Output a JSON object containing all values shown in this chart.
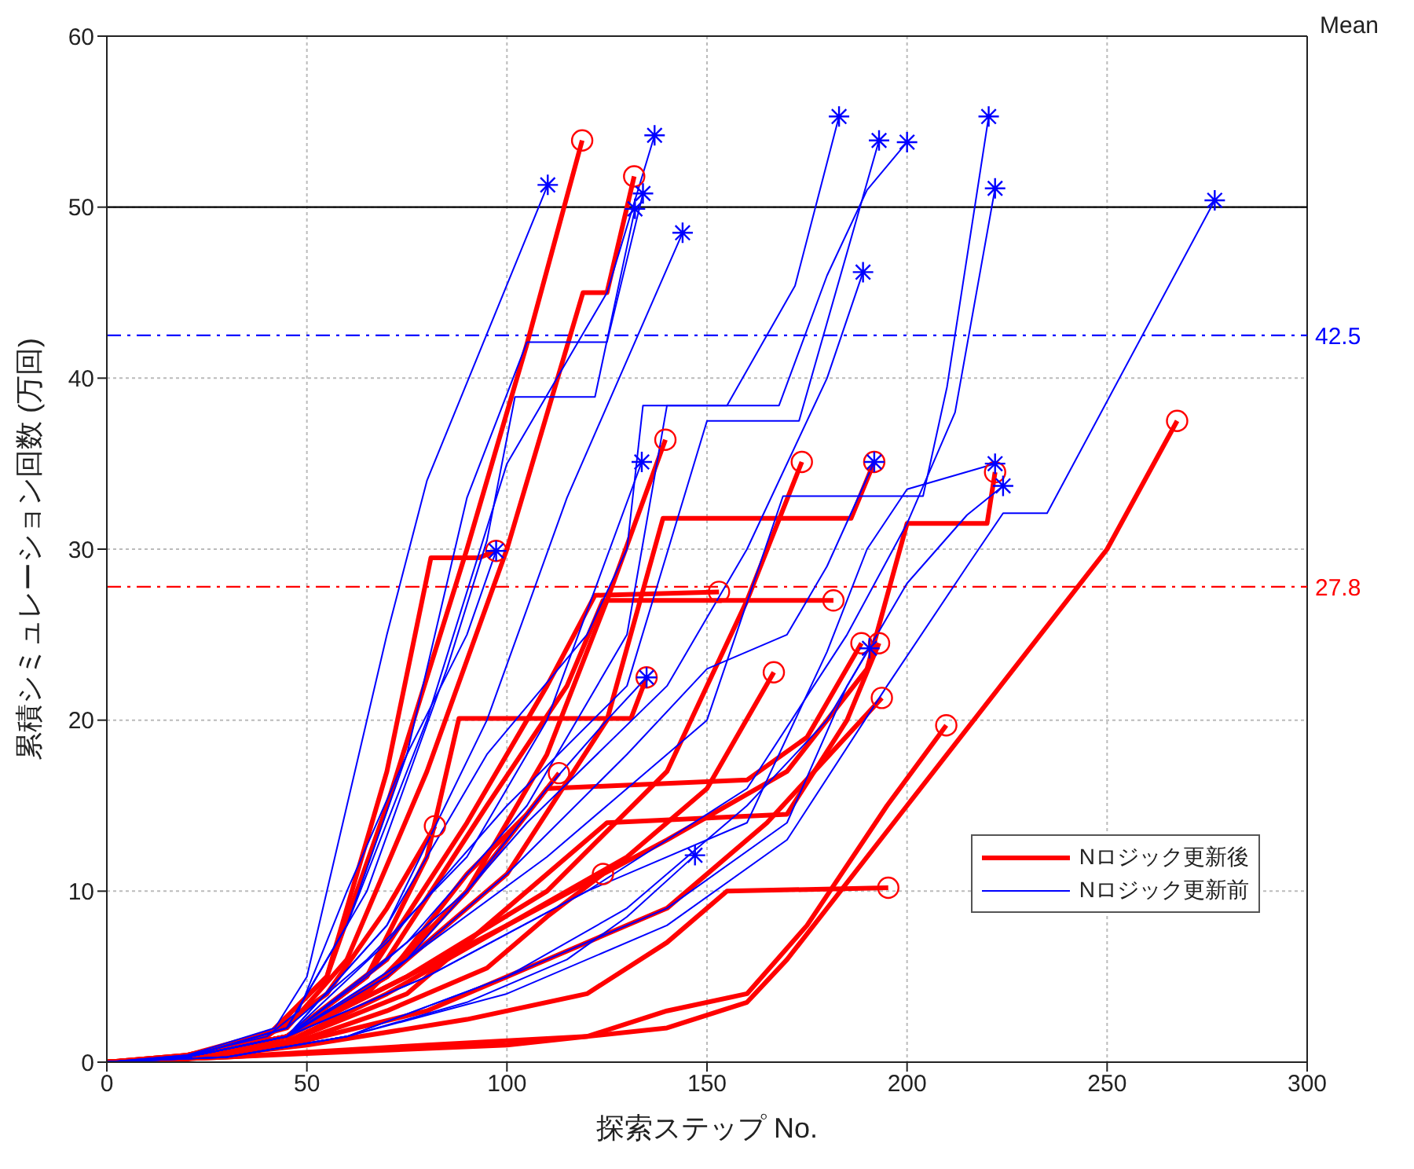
{
  "chart_data": {
    "type": "line",
    "xlabel": "探索ステップ No.",
    "ylabel": "累積シミュレーション回数 (万回)",
    "xlim": [
      0,
      300
    ],
    "xticks": [
      0,
      50,
      100,
      150,
      200,
      250,
      300
    ],
    "ylim": [
      0,
      60
    ],
    "yticks": [
      0,
      10,
      20,
      30,
      40,
      50,
      60
    ],
    "grid": true,
    "legend": "bottom right",
    "annotations": [
      "Mean"
    ],
    "ref_lines": [
      {
        "axis": "y",
        "value": 50,
        "color": "#000000",
        "line_style": "solid"
      },
      {
        "axis": "y",
        "value": 42.5,
        "label": "42.5",
        "color": "#0000ff",
        "line_style": "dashed"
      },
      {
        "axis": "y",
        "value": 27.8,
        "label": "27.8",
        "color": "#ff0000",
        "line_style": "dashed"
      }
    ],
    "series": [
      {
        "name": "Nロジック更新後",
        "color": "#ff0000",
        "x": [
          0,
          20,
          40,
          55,
          70,
          90,
          105,
          118.8
        ],
        "values": [
          0,
          0.4,
          1.5,
          5,
          15,
          30,
          42,
          53.9
        ]
      },
      {
        "color": "#ff0000",
        "x": [
          0,
          20,
          45,
          60,
          80,
          100,
          119,
          125,
          131.8
        ],
        "values": [
          0,
          0.4,
          2,
          6,
          17,
          30,
          45,
          45,
          51.8
        ]
      },
      {
        "color": "#ff0000",
        "x": [
          0,
          20,
          45,
          65,
          90,
          110,
          125,
          139.6
        ],
        "values": [
          0,
          0.3,
          1.5,
          4,
          10,
          18,
          27,
          36.4
        ]
      },
      {
        "color": "#ff0000",
        "x": [
          0,
          20,
          40,
          55,
          70,
          82
        ],
        "values": [
          0,
          0.3,
          1.5,
          4,
          9,
          13.8
        ]
      },
      {
        "color": "#ff0000",
        "x": [
          0,
          20,
          45,
          70,
          90,
          105,
          113
        ],
        "values": [
          0,
          0.3,
          1.5,
          5,
          11,
          14.5,
          16.9
        ]
      },
      {
        "color": "#ff0000",
        "x": [
          0,
          20,
          45,
          70,
          95,
          110,
          124
        ],
        "values": [
          0,
          0.2,
          1,
          3,
          5.5,
          8.5,
          11
        ]
      },
      {
        "color": "#ff0000",
        "x": [
          0,
          20,
          45,
          65,
          90,
          110,
          122,
          153
        ],
        "values": [
          0,
          0.3,
          1.5,
          5,
          14,
          22,
          27.3,
          27.5
        ]
      },
      {
        "color": "#ff0000",
        "x": [
          0,
          20,
          45,
          70,
          95,
          115,
          124,
          181.6
        ],
        "values": [
          0,
          0.3,
          1.5,
          6,
          15,
          22,
          27,
          27
        ]
      },
      {
        "color": "#ff0000",
        "x": [
          0,
          20,
          45,
          75,
          110,
          140,
          160,
          173.7
        ],
        "values": [
          0,
          0.3,
          1.5,
          5,
          10,
          17,
          27,
          35.1
        ]
      },
      {
        "color": "#ff0000",
        "x": [
          0,
          20,
          45,
          75,
          100,
          130,
          150,
          166.7
        ],
        "values": [
          0,
          0.3,
          1.5,
          5,
          8,
          12,
          16,
          22.8
        ]
      },
      {
        "color": "#ff0000",
        "x": [
          0,
          20,
          45,
          70,
          100,
          125,
          139,
          186,
          191.8
        ],
        "values": [
          0,
          0.3,
          1.5,
          5,
          11,
          20,
          31.8,
          31.8,
          35.1
        ]
      },
      {
        "color": "#ff0000",
        "x": [
          0,
          20,
          45,
          70,
          90,
          110,
          160,
          175,
          188.6
        ],
        "values": [
          0,
          0.3,
          1.5,
          5,
          10,
          16,
          16.5,
          19,
          24.5
        ]
      },
      {
        "color": "#ff0000",
        "x": [
          0,
          20,
          45,
          75,
          100,
          125,
          170,
          185,
          193
        ],
        "values": [
          0,
          0.2,
          1.2,
          4,
          9,
          14,
          14.5,
          20,
          24.5
        ]
      },
      {
        "color": "#ff0000",
        "x": [
          0,
          20,
          45,
          80,
          110,
          140,
          165,
          193.7
        ],
        "values": [
          0,
          0.2,
          1,
          3,
          6,
          9,
          14,
          21.3
        ]
      },
      {
        "color": "#ff0000",
        "x": [
          0,
          20,
          50,
          90,
          120,
          140,
          155,
          195.3
        ],
        "values": [
          0,
          0.2,
          1,
          2.5,
          4,
          7,
          10,
          10.2
        ]
      },
      {
        "color": "#ff0000",
        "x": [
          0,
          30,
          80,
          120,
          140,
          160,
          175,
          195,
          209.8
        ],
        "values": [
          0,
          0.3,
          1,
          1.5,
          3,
          4,
          8,
          15,
          19.7
        ]
      },
      {
        "color": "#ff0000",
        "x": [
          0,
          20,
          45,
          70,
          100,
          140,
          170,
          190,
          200,
          220,
          222
        ],
        "values": [
          0,
          0.2,
          1.2,
          4,
          8,
          13,
          17,
          23,
          31.5,
          31.5,
          34.5
        ]
      },
      {
        "color": "#ff0000",
        "x": [
          0,
          50,
          100,
          140,
          160,
          170,
          200,
          230,
          250,
          267.5
        ],
        "values": [
          0,
          0.5,
          1,
          2,
          3.5,
          6,
          15,
          24,
          30,
          37.5
        ]
      },
      {
        "color": "#ff0000",
        "x": [
          0,
          20,
          40,
          55,
          70,
          81,
          93,
          97.3
        ],
        "values": [
          0,
          0.4,
          1.5,
          5,
          17,
          29.5,
          29.5,
          29.9
        ]
      },
      {
        "color": "#ff0000",
        "x": [
          0,
          20,
          45,
          65,
          80,
          88,
          131,
          134.9
        ],
        "values": [
          0,
          0.3,
          1.5,
          5,
          12,
          20.1,
          20.1,
          22.5
        ]
      },
      {
        "name": "Nロジック更新前",
        "color": "#0000ff",
        "x": [
          0,
          20,
          42,
          50,
          70,
          80,
          110.2
        ],
        "values": [
          0,
          0.4,
          2,
          5,
          25,
          34,
          51.3
        ]
      },
      {
        "color": "#0000ff",
        "x": [
          0,
          20,
          45,
          60,
          80,
          100,
          125,
          136.9
        ],
        "values": [
          0,
          0.3,
          2,
          8,
          20,
          35,
          45,
          54.2
        ]
      },
      {
        "color": "#0000ff",
        "x": [
          0,
          20,
          45,
          60,
          75,
          90,
          105,
          125,
          134
        ],
        "values": [
          0,
          0.3,
          2,
          8,
          18,
          33,
          42.1,
          42.1,
          50.8
        ]
      },
      {
        "color": "#0000ff",
        "x": [
          0,
          20,
          45,
          65,
          85,
          95,
          102,
          122,
          132
        ],
        "values": [
          0,
          0.3,
          2,
          10,
          23,
          30.5,
          38.9,
          38.9,
          49.9
        ]
      },
      {
        "color": "#0000ff",
        "x": [
          0,
          20,
          45,
          70,
          95,
          115,
          143.9
        ],
        "values": [
          0,
          0.3,
          1.5,
          8,
          20,
          33,
          48.5
        ]
      },
      {
        "color": "#0000ff",
        "x": [
          0,
          20,
          45,
          70,
          95,
          120,
          130,
          134,
          155,
          172,
          183
        ],
        "values": [
          0,
          0.3,
          1.5,
          8,
          18,
          25,
          30,
          38.4,
          38.4,
          45.4,
          55.3
        ]
      },
      {
        "color": "#0000ff",
        "x": [
          0,
          20,
          45,
          70,
          100,
          130,
          150,
          173,
          193
        ],
        "values": [
          0,
          0.3,
          1.5,
          7,
          15,
          22,
          37.5,
          37.5,
          53.9
        ]
      },
      {
        "color": "#0000ff",
        "x": [
          0,
          20,
          45,
          75,
          105,
          130,
          140,
          168,
          180,
          190,
          200
        ],
        "values": [
          0,
          0.3,
          1.5,
          7,
          15,
          25,
          38.4,
          38.4,
          46,
          51,
          53.8
        ]
      },
      {
        "color": "#0000ff",
        "x": [
          0,
          20,
          45,
          75,
          110,
          150,
          169,
          204,
          210,
          220.4
        ],
        "values": [
          0,
          0.3,
          1.5,
          6,
          12,
          20,
          33.1,
          33.1,
          39.5,
          55.3
        ]
      },
      {
        "color": "#0000ff",
        "x": [
          0,
          20,
          45,
          80,
          120,
          160,
          185,
          200,
          212,
          222
        ],
        "values": [
          0,
          0.3,
          1.5,
          5,
          10,
          16,
          25,
          31.5,
          38,
          51.1
        ]
      },
      {
        "color": "#0000ff",
        "x": [
          0,
          30,
          60,
          100,
          140,
          170,
          195,
          215,
          224,
          235,
          276.9
        ],
        "values": [
          0,
          0.3,
          1.5,
          4,
          8,
          13,
          22,
          29,
          32.1,
          32.1,
          50.4
        ]
      },
      {
        "color": "#0000ff",
        "x": [
          0,
          20,
          45,
          75,
          105,
          140,
          160,
          180,
          189
        ],
        "values": [
          0,
          0.3,
          1.5,
          6,
          14,
          22,
          30,
          40,
          46.2
        ]
      },
      {
        "color": "#0000ff",
        "x": [
          0,
          20,
          45,
          65,
          90,
          110,
          133.7
        ],
        "values": [
          0,
          0.3,
          2,
          6,
          12,
          20,
          35.1
        ]
      },
      {
        "color": "#0000ff",
        "x": [
          0,
          20,
          45,
          70,
          100,
          130,
          150,
          170,
          180,
          191.8
        ],
        "values": [
          0,
          0.3,
          1.5,
          5,
          11,
          18,
          23,
          25,
          29,
          35.1
        ]
      },
      {
        "color": "#0000ff",
        "x": [
          0,
          20,
          45,
          80,
          120,
          160,
          180,
          190,
          200,
          222
        ],
        "values": [
          0,
          0.3,
          1.5,
          5,
          10,
          14,
          24,
          30,
          33.5,
          35
        ]
      },
      {
        "color": "#0000ff",
        "x": [
          0,
          30,
          60,
          100,
          140,
          170,
          185,
          200,
          215,
          224
        ],
        "values": [
          0,
          0.3,
          1.5,
          5,
          9,
          14,
          22,
          28,
          32,
          33.7
        ]
      },
      {
        "color": "#0000ff",
        "x": [
          0,
          30,
          60,
          100,
          130,
          160,
          180,
          190.6
        ],
        "values": [
          0,
          0.3,
          1.5,
          5,
          9,
          15,
          20,
          24.2
        ]
      },
      {
        "color": "#0000ff",
        "x": [
          0,
          20,
          40,
          48,
          60,
          75,
          90,
          97.3
        ],
        "values": [
          0,
          0.4,
          1.5,
          3,
          10,
          18,
          25,
          29.9
        ]
      },
      {
        "color": "#0000ff",
        "x": [
          0,
          20,
          45,
          65,
          90,
          110,
          125,
          134.9
        ],
        "values": [
          0,
          0.3,
          1.5,
          5,
          10,
          16,
          20,
          22.5
        ]
      },
      {
        "color": "#0000ff",
        "x": [
          0,
          30,
          60,
          90,
          115,
          130,
          147
        ],
        "values": [
          0,
          0.3,
          1.5,
          3.5,
          6,
          8.5,
          12.1
        ]
      },
      {
        "type": "scatter",
        "marker": "circle",
        "color": "#ff0000",
        "x": [
          118.8,
          131.8,
          139.6,
          82,
          113,
          124,
          153,
          181.6,
          173.7,
          166.7,
          191.8,
          188.6,
          193,
          193.7,
          195.3,
          209.8,
          222,
          267.5,
          97.3,
          134.9
        ],
        "values": [
          53.9,
          51.8,
          36.4,
          13.8,
          16.9,
          11,
          27.5,
          27,
          35.1,
          22.8,
          35.1,
          24.5,
          24.5,
          21.3,
          10.2,
          19.7,
          34.5,
          37.5,
          29.9,
          22.5
        ]
      },
      {
        "type": "scatter",
        "marker": "cross",
        "color": "#0000ff",
        "x": [
          110.2,
          136.9,
          134,
          132,
          143.9,
          183,
          193,
          200,
          220.4,
          222,
          276.9,
          189,
          133.7,
          191.8,
          222,
          224,
          190.6,
          97.3,
          134.9,
          147
        ],
        "values": [
          51.3,
          54.2,
          50.8,
          49.9,
          48.5,
          55.3,
          53.9,
          53.8,
          55.3,
          51.1,
          50.4,
          46.2,
          35.1,
          35.1,
          35,
          33.7,
          24.2,
          29.9,
          22.5,
          12.1
        ]
      }
    ]
  }
}
